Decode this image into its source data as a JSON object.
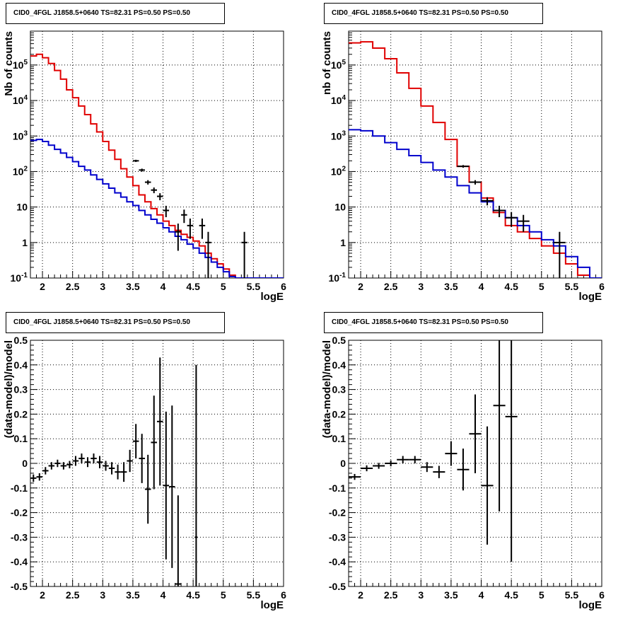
{
  "chart_data": [
    {
      "type": "line",
      "title": "CID0_4FGL J1858.5+0640 TS=82.31 PS=0.50 PS=0.50",
      "xlabel": "logE",
      "ylabel": "Nb of counts",
      "yscale": "log",
      "xlim": [
        1.8,
        6.0
      ],
      "ylim": [
        0.1,
        900000
      ],
      "xticks": [
        "2",
        "2.5",
        "3",
        "3.5",
        "4",
        "4.5",
        "5",
        "5.5",
        "6"
      ],
      "yticks": [
        "10^-1",
        "1",
        "10",
        "10^2",
        "10^3",
        "10^4",
        "10^5"
      ],
      "grid": true,
      "series": [
        {
          "role": "total-model",
          "color": "#e00000",
          "bin_edges": [
            1.8,
            1.9,
            2.0,
            2.1,
            2.2,
            2.3,
            2.4,
            2.5,
            2.6,
            2.7,
            2.8,
            2.9,
            3.0,
            3.1,
            3.2,
            3.3,
            3.4,
            3.5,
            3.6,
            3.7,
            3.8,
            3.9,
            4.0,
            4.1,
            4.2,
            4.3,
            4.4,
            4.5,
            4.6,
            4.7,
            4.8,
            4.9,
            5.0,
            5.1,
            5.2,
            5.3,
            5.4,
            5.5,
            5.6,
            5.7,
            5.8,
            5.9,
            6.0
          ],
          "values": [
            180000,
            200000,
            160000,
            110000,
            70000,
            40000,
            20000,
            12000,
            7000,
            4000,
            2200,
            1300,
            700,
            400,
            220,
            120,
            70,
            40,
            22,
            14,
            9,
            6,
            4,
            3,
            2.2,
            1.7,
            1.4,
            1.1,
            0.8,
            0.5,
            0.35,
            0.25,
            0.18,
            0.12,
            0.1,
            0.1,
            0.1,
            0.1,
            0.1,
            0.1,
            0.1,
            0.1
          ]
        },
        {
          "role": "source-model",
          "color": "#0000cc",
          "bin_edges": [
            1.8,
            1.9,
            2.0,
            2.1,
            2.2,
            2.3,
            2.4,
            2.5,
            2.6,
            2.7,
            2.8,
            2.9,
            3.0,
            3.1,
            3.2,
            3.3,
            3.4,
            3.5,
            3.6,
            3.7,
            3.8,
            3.9,
            4.0,
            4.1,
            4.2,
            4.3,
            4.4,
            4.5,
            4.6,
            4.7,
            4.8,
            4.9,
            5.0,
            5.1,
            5.2,
            5.3,
            5.4,
            5.5,
            5.6,
            5.7,
            5.8,
            5.9,
            6.0
          ],
          "values": [
            750,
            800,
            700,
            550,
            420,
            330,
            250,
            190,
            140,
            110,
            80,
            60,
            45,
            34,
            25,
            19,
            14,
            11,
            8,
            6,
            4.5,
            3.5,
            2.6,
            2,
            1.5,
            1.2,
            0.9,
            0.7,
            0.5,
            0.38,
            0.28,
            0.2,
            0.15,
            0.11,
            0.1,
            0.1,
            0.1,
            0.1,
            0.1,
            0.1,
            0.1,
            0.1
          ]
        },
        {
          "role": "data",
          "color": "#000000",
          "points": [
            {
              "x": 3.55,
              "y": 200,
              "xerr": 0.05
            },
            {
              "x": 3.65,
              "y": 110,
              "xerr": 0.05
            },
            {
              "x": 3.75,
              "y": 50,
              "xerr": 0.05
            },
            {
              "x": 3.85,
              "y": 30,
              "xerr": 0.05
            },
            {
              "x": 3.95,
              "y": 20,
              "xerr": 0.05
            },
            {
              "x": 4.05,
              "y": 8,
              "xerr": 0.05
            },
            {
              "x": 4.25,
              "y": 2,
              "xerr": 0.05
            },
            {
              "x": 4.35,
              "y": 6,
              "xerr": 0.05
            },
            {
              "x": 4.45,
              "y": 3,
              "xerr": 0.05
            },
            {
              "x": 4.65,
              "y": 3,
              "xerr": 0.05
            },
            {
              "x": 4.75,
              "y": 1,
              "xerr": 0.05
            },
            {
              "x": 5.35,
              "y": 1,
              "xerr": 0.05
            }
          ]
        }
      ]
    },
    {
      "type": "line",
      "title": "CID0_4FGL J1858.5+0640 TS=82.31 PS=0.50 PS=0.50",
      "xlabel": "logE",
      "ylabel": "nb of counts",
      "yscale": "log",
      "xlim": [
        1.8,
        6.0
      ],
      "ylim": [
        0.1,
        900000
      ],
      "xticks": [
        "2",
        "2.5",
        "3",
        "3.5",
        "4",
        "4.5",
        "5",
        "5.5",
        "6"
      ],
      "yticks": [
        "10^-1",
        "1",
        "10",
        "10^2",
        "10^3",
        "10^4",
        "10^5"
      ],
      "grid": true,
      "series": [
        {
          "role": "total-model",
          "color": "#e00000",
          "bin_edges": [
            1.8,
            2.0,
            2.2,
            2.4,
            2.6,
            2.8,
            3.0,
            3.2,
            3.4,
            3.6,
            3.8,
            4.0,
            4.2,
            4.4,
            4.6,
            4.8,
            5.0,
            5.2,
            5.4,
            5.6,
            5.8,
            6.0
          ],
          "values": [
            420000,
            450000,
            300000,
            150000,
            60000,
            22000,
            7000,
            2400,
            800,
            140,
            50,
            18,
            7,
            3,
            2,
            1.3,
            0.8,
            0.5,
            0.25,
            0.12,
            0.1
          ]
        },
        {
          "role": "source-model",
          "color": "#0000cc",
          "bin_edges": [
            1.8,
            2.0,
            2.2,
            2.4,
            2.6,
            2.8,
            3.0,
            3.2,
            3.4,
            3.6,
            3.8,
            4.0,
            4.2,
            4.4,
            4.6,
            4.8,
            5.0,
            5.2,
            5.4,
            5.6,
            5.8,
            6.0
          ],
          "values": [
            1500,
            1400,
            1000,
            650,
            420,
            280,
            180,
            110,
            70,
            40,
            25,
            14,
            8,
            5,
            3,
            2,
            1.2,
            0.8,
            0.4,
            0.2,
            0.1
          ]
        },
        {
          "role": "data",
          "color": "#000000",
          "points": [
            {
              "x": 3.7,
              "y": 140,
              "xerr": 0.1
            },
            {
              "x": 3.9,
              "y": 50,
              "xerr": 0.1
            },
            {
              "x": 4.1,
              "y": 15,
              "xerr": 0.1
            },
            {
              "x": 4.3,
              "y": 8,
              "xerr": 0.1
            },
            {
              "x": 4.5,
              "y": 5,
              "xerr": 0.1
            },
            {
              "x": 4.7,
              "y": 4,
              "xerr": 0.1
            },
            {
              "x": 5.3,
              "y": 1,
              "xerr": 0.1
            }
          ]
        }
      ]
    },
    {
      "type": "scatter",
      "title": "CID0_4FGL J1858.5+0640 TS=82.31 PS=0.50 PS=0.50",
      "xlabel": "logE",
      "ylabel": "(data-model)/model",
      "yscale": "linear",
      "xlim": [
        1.8,
        6.0
      ],
      "ylim": [
        -0.5,
        0.5
      ],
      "xticks": [
        "2",
        "2.5",
        "3",
        "3.5",
        "4",
        "4.5",
        "5",
        "5.5",
        "6"
      ],
      "yticks": [
        "-0.5",
        "-0.4",
        "-0.3",
        "-0.2",
        "-0.1",
        "0",
        "0.1",
        "0.2",
        "0.3",
        "0.4",
        "0.5"
      ],
      "grid": true,
      "series": [
        {
          "role": "residuals",
          "color": "#000000",
          "points": [
            {
              "x": 1.85,
              "y": -0.06,
              "xerr": 0.05,
              "yerr": 0.015
            },
            {
              "x": 1.95,
              "y": -0.055,
              "xerr": 0.05,
              "yerr": 0.015
            },
            {
              "x": 2.05,
              "y": -0.03,
              "xerr": 0.05,
              "yerr": 0.015
            },
            {
              "x": 2.15,
              "y": -0.01,
              "xerr": 0.05,
              "yerr": 0.015
            },
            {
              "x": 2.25,
              "y": 0.0,
              "xerr": 0.05,
              "yerr": 0.015
            },
            {
              "x": 2.35,
              "y": -0.01,
              "xerr": 0.05,
              "yerr": 0.015
            },
            {
              "x": 2.45,
              "y": -0.005,
              "xerr": 0.05,
              "yerr": 0.015
            },
            {
              "x": 2.55,
              "y": 0.01,
              "xerr": 0.05,
              "yerr": 0.02
            },
            {
              "x": 2.65,
              "y": 0.02,
              "xerr": 0.05,
              "yerr": 0.02
            },
            {
              "x": 2.75,
              "y": 0.005,
              "xerr": 0.05,
              "yerr": 0.02
            },
            {
              "x": 2.85,
              "y": 0.02,
              "xerr": 0.05,
              "yerr": 0.02
            },
            {
              "x": 2.95,
              "y": 0.005,
              "xerr": 0.05,
              "yerr": 0.025
            },
            {
              "x": 3.05,
              "y": -0.01,
              "xerr": 0.05,
              "yerr": 0.02
            },
            {
              "x": 3.15,
              "y": -0.02,
              "xerr": 0.05,
              "yerr": 0.025
            },
            {
              "x": 3.25,
              "y": -0.035,
              "xerr": 0.05,
              "yerr": 0.03
            },
            {
              "x": 3.35,
              "y": -0.035,
              "xerr": 0.05,
              "yerr": 0.04
            },
            {
              "x": 3.45,
              "y": 0.01,
              "xerr": 0.05,
              "yerr": 0.045
            },
            {
              "x": 3.55,
              "y": 0.09,
              "xerr": 0.05,
              "yerr": 0.07
            },
            {
              "x": 3.65,
              "y": 0.02,
              "xerr": 0.05,
              "yerr": 0.1
            },
            {
              "x": 3.75,
              "y": -0.105,
              "xerr": 0.05,
              "yerr": 0.14
            },
            {
              "x": 3.85,
              "y": 0.085,
              "xerr": 0.05,
              "yerr": 0.19
            },
            {
              "x": 3.95,
              "y": 0.17,
              "xerr": 0.05,
              "yerr": 0.26
            },
            {
              "x": 4.05,
              "y": -0.09,
              "xerr": 0.05,
              "yerr": 0.3
            },
            {
              "x": 4.15,
              "y": -0.095,
              "xerr": 0.05,
              "yerr": 0.33
            },
            {
              "x": 4.25,
              "y": -0.49,
              "xerr": 0.05,
              "yerr": 0.36
            },
            {
              "x": 4.55,
              "y": -0.3,
              "xerr": 0.02,
              "yerr": 0.7
            }
          ]
        }
      ]
    },
    {
      "type": "scatter",
      "title": "CID0_4FGL J1858.5+0640 TS=82.31 PS=0.50 PS=0.50",
      "xlabel": "logE",
      "ylabel": "(data-model)/model",
      "yscale": "linear",
      "xlim": [
        1.8,
        6.0
      ],
      "ylim": [
        -0.5,
        0.5
      ],
      "xticks": [
        "2",
        "2.5",
        "3",
        "3.5",
        "4",
        "4.5",
        "5",
        "5.5",
        "6"
      ],
      "yticks": [
        "-0.5",
        "-0.4",
        "-0.3",
        "-0.2",
        "-0.1",
        "0",
        "0.1",
        "0.2",
        "0.3",
        "0.4",
        "0.5"
      ],
      "grid": true,
      "series": [
        {
          "role": "residuals",
          "color": "#000000",
          "points": [
            {
              "x": 1.9,
              "y": -0.055,
              "xerr": 0.1,
              "yerr": 0.012
            },
            {
              "x": 2.1,
              "y": -0.02,
              "xerr": 0.1,
              "yerr": 0.012
            },
            {
              "x": 2.3,
              "y": -0.01,
              "xerr": 0.1,
              "yerr": 0.012
            },
            {
              "x": 2.5,
              "y": 0.0,
              "xerr": 0.1,
              "yerr": 0.012
            },
            {
              "x": 2.7,
              "y": 0.015,
              "xerr": 0.1,
              "yerr": 0.015
            },
            {
              "x": 2.9,
              "y": 0.015,
              "xerr": 0.1,
              "yerr": 0.015
            },
            {
              "x": 3.1,
              "y": -0.015,
              "xerr": 0.1,
              "yerr": 0.02
            },
            {
              "x": 3.3,
              "y": -0.035,
              "xerr": 0.1,
              "yerr": 0.025
            },
            {
              "x": 3.5,
              "y": 0.04,
              "xerr": 0.1,
              "yerr": 0.05
            },
            {
              "x": 3.7,
              "y": -0.025,
              "xerr": 0.1,
              "yerr": 0.085
            },
            {
              "x": 3.9,
              "y": 0.12,
              "xerr": 0.1,
              "yerr": 0.16
            },
            {
              "x": 4.1,
              "y": -0.09,
              "xerr": 0.1,
              "yerr": 0.24
            },
            {
              "x": 4.3,
              "y": 0.235,
              "xerr": 0.1,
              "yerr": 0.43
            },
            {
              "x": 4.5,
              "y": 0.19,
              "xerr": 0.1,
              "yerr": 0.59
            }
          ]
        }
      ]
    }
  ]
}
